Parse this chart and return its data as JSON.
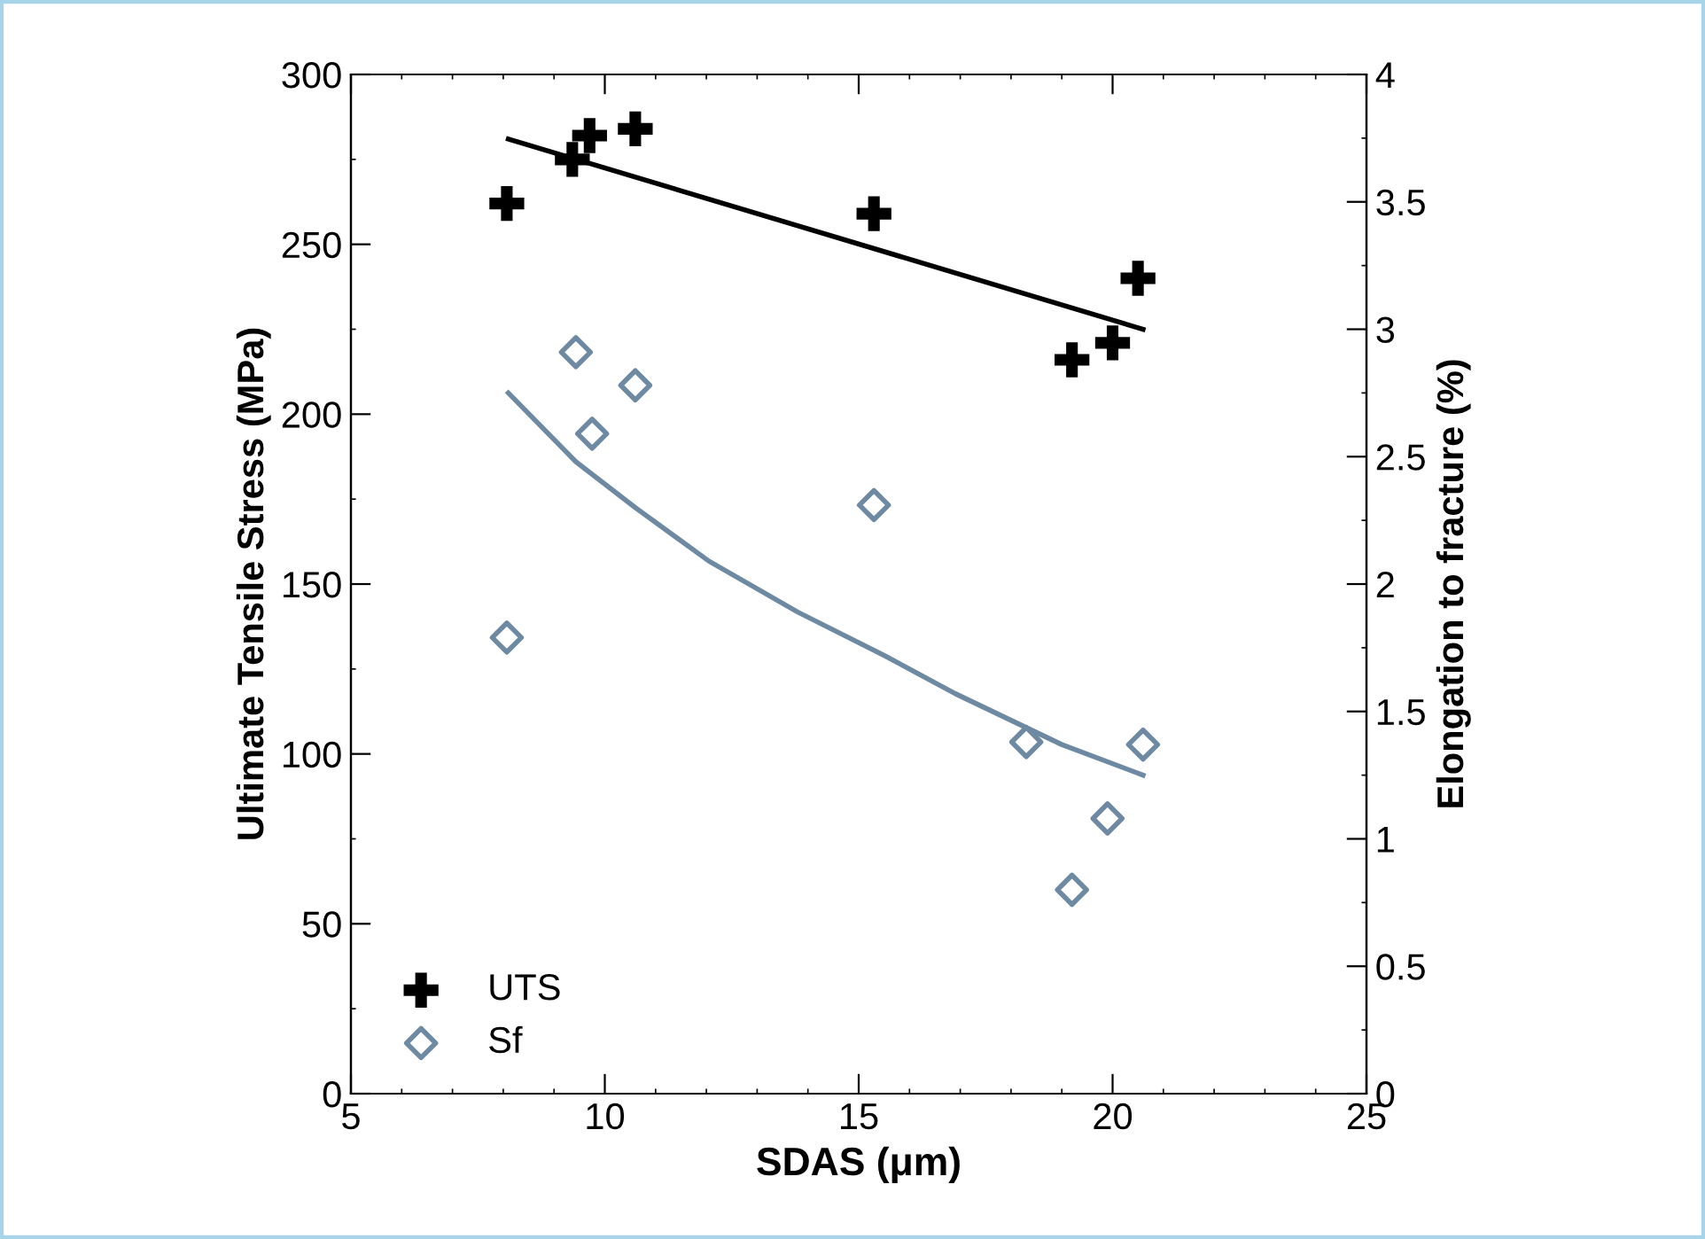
{
  "chart_data": {
    "type": "scatter",
    "xlabel": "SDAS (μm)",
    "ylabel": "Ultimate Tensile Stress (MPa)",
    "y2label": "Elongation to fracture (%)",
    "xlim": [
      5,
      25
    ],
    "xticks": [
      5,
      10,
      15,
      20,
      25
    ],
    "ylim": [
      0,
      300
    ],
    "yticks": [
      0,
      50,
      100,
      150,
      200,
      250,
      300
    ],
    "y2lim": [
      0,
      4
    ],
    "y2ticks": [
      0,
      0.5,
      1,
      1.5,
      2,
      2.5,
      3,
      3.5,
      4
    ],
    "legend": "bottom left",
    "grid": false,
    "series": [
      {
        "name": "UTS",
        "marker": "cross",
        "color": "#000000",
        "x": [
          8.07,
          9.36,
          9.7,
          10.6,
          15.3,
          19.2,
          20.0,
          20.5
        ],
        "values": [
          262,
          275,
          282,
          284,
          259,
          216,
          221,
          240
        ]
      },
      {
        "name": "Sf",
        "marker": "diamond",
        "color": "#6e8aa3",
        "axis": "y2",
        "x": [
          8.07,
          9.43,
          9.75,
          10.6,
          15.3,
          18.3,
          19.2,
          19.9,
          20.6
        ],
        "values": [
          1.79,
          2.91,
          2.59,
          2.78,
          2.31,
          1.38,
          0.8,
          1.08,
          1.37
        ]
      },
      {
        "type": "line",
        "color": "#000000",
        "line_style": "solid",
        "x": [
          8.1,
          20.6
        ],
        "values": [
          281,
          225
        ]
      },
      {
        "type": "line",
        "color": "#6e8aa3",
        "line_style": "solid",
        "axis": "y2",
        "x": [
          8.1,
          9.43,
          10.6,
          12.05,
          13.8,
          15.5,
          16.9,
          19.0,
          20.6
        ],
        "values": [
          2.75,
          2.48,
          2.3,
          2.09,
          1.89,
          1.72,
          1.57,
          1.37,
          1.25
        ]
      }
    ]
  }
}
